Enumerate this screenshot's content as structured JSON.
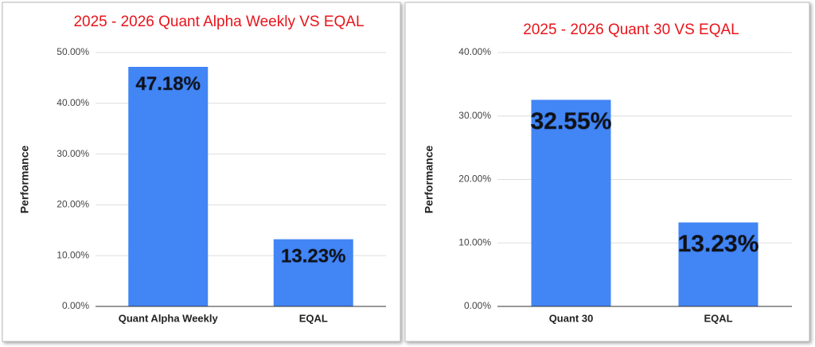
{
  "chart_data": [
    {
      "type": "bar",
      "title": "2025 - 2026 Quant Alpha Weekly VS EQAL",
      "title_color": "#e8141b",
      "y_label": "Performance",
      "categories": [
        "Quant Alpha Weekly",
        "EQAL"
      ],
      "values": [
        47.18,
        13.23
      ],
      "value_labels": [
        "47.18%",
        "13.23%"
      ],
      "color": "#4285f4",
      "ylim": [
        0,
        50
      ],
      "yticks": [
        {
          "value": 0,
          "label": "0.00%"
        },
        {
          "value": 10,
          "label": "10.00%"
        },
        {
          "value": 20,
          "label": "20.00%"
        },
        {
          "value": 30,
          "label": "30.00%"
        },
        {
          "value": 40,
          "label": "40.00%"
        },
        {
          "value": 50,
          "label": "50.00%"
        }
      ],
      "grid": true
    },
    {
      "type": "bar",
      "title": "2025 - 2026 Quant 30 VS EQAL",
      "title_color": "#e8141b",
      "y_label": "Performance",
      "categories": [
        "Quant 30",
        "EQAL"
      ],
      "values": [
        32.55,
        13.23
      ],
      "value_labels": [
        "32.55%",
        "13.23%"
      ],
      "color": "#4285f4",
      "ylim": [
        0,
        40
      ],
      "yticks": [
        {
          "value": 0,
          "label": "0.00%"
        },
        {
          "value": 10,
          "label": "10.00%"
        },
        {
          "value": 20,
          "label": "20.00%"
        },
        {
          "value": 30,
          "label": "30.00%"
        },
        {
          "value": 40,
          "label": "40.00%"
        }
      ],
      "grid": true
    }
  ]
}
